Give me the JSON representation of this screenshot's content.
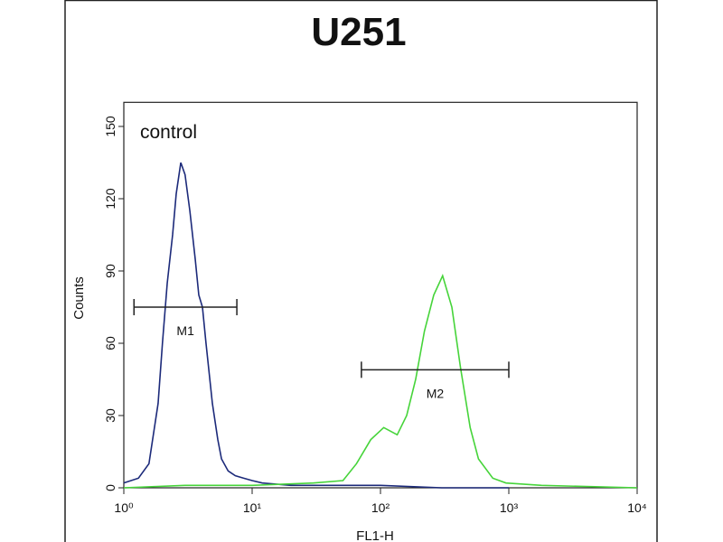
{
  "chart_data": {
    "type": "histogram-overlay",
    "title": "U251",
    "annotation": "control",
    "x_label": "FL1-H",
    "y_label": "Counts",
    "xscale": "log",
    "xlim": [
      1,
      10000
    ],
    "xticks": [
      {
        "value": 1,
        "label": "10⁰"
      },
      {
        "value": 10,
        "label": "10¹"
      },
      {
        "value": 100,
        "label": "10²"
      },
      {
        "value": 1000,
        "label": "10³"
      },
      {
        "value": 10000,
        "label": "10⁴"
      }
    ],
    "ylim": [
      0,
      160
    ],
    "yticks": [
      0,
      30,
      60,
      90,
      120,
      150
    ],
    "series": [
      {
        "color": "#1c2a7a",
        "x": [
          1.0,
          1.3,
          1.57,
          1.85,
          2.0,
          2.18,
          2.4,
          2.56,
          2.78,
          3.0,
          3.27,
          3.6,
          3.84,
          4.1,
          4.37,
          4.9,
          5.4,
          5.77,
          6.5,
          7.4,
          8.6,
          10,
          12,
          20,
          50,
          100,
          300,
          1000
        ],
        "values": [
          2,
          4,
          10,
          35,
          60,
          85,
          105,
          122,
          135,
          130,
          115,
          95,
          80,
          75,
          60,
          35,
          20,
          12,
          7,
          5,
          4,
          3,
          2,
          1,
          1,
          1,
          0,
          0
        ]
      },
      {
        "color": "#46d43a",
        "x": [
          1,
          3,
          10,
          30,
          51,
          65,
          84,
          106,
          135,
          160,
          188,
          220,
          260,
          305,
          360,
          420,
          500,
          580,
          750,
          950,
          1800,
          10000
        ],
        "values": [
          0,
          1,
          1,
          2,
          3,
          10,
          20,
          25,
          22,
          30,
          45,
          65,
          80,
          88,
          75,
          50,
          25,
          12,
          4,
          2,
          1,
          0
        ]
      }
    ],
    "markers": [
      {
        "label": "M1",
        "range": [
          1.2,
          7.6
        ],
        "y": 75
      },
      {
        "label": "M2",
        "range": [
          71,
          1000
        ],
        "y": 49
      }
    ]
  }
}
